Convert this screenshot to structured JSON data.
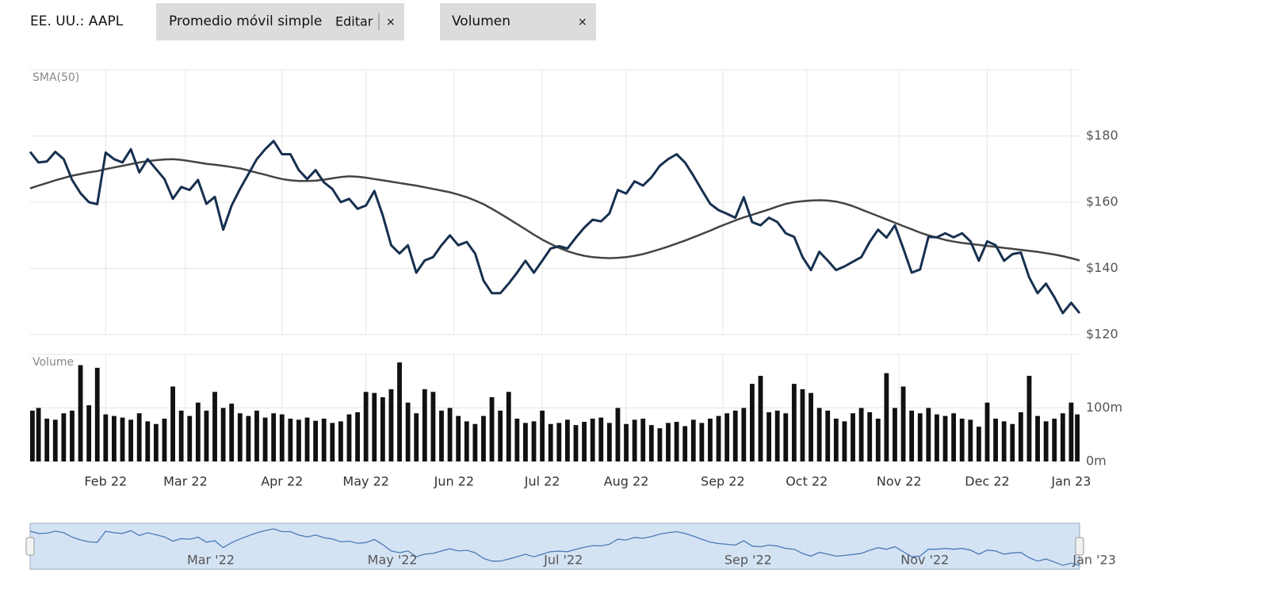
{
  "header": {
    "symbol": "EE. UU.: AAPL",
    "indicator": {
      "label": "Promedio móvil simple",
      "edit": "Editar",
      "close": "×"
    },
    "volume_tag": {
      "label": "Volumen",
      "close": "×"
    }
  },
  "chart_data": [
    {
      "type": "line",
      "title": "SMA(50)",
      "x": [
        0,
        2,
        4,
        6,
        8,
        10,
        12,
        14,
        16,
        18,
        20,
        22,
        24,
        26,
        28,
        30,
        32,
        34,
        36,
        38,
        40,
        42,
        44,
        46,
        48,
        50,
        52,
        54,
        56,
        58,
        60,
        62,
        64,
        66,
        68,
        70,
        72,
        74,
        76,
        78,
        80,
        82,
        84,
        86,
        88,
        90,
        92,
        94,
        96,
        98,
        100,
        102,
        104,
        106,
        108,
        110,
        112,
        114,
        116,
        118,
        120,
        122,
        124,
        126,
        128,
        130,
        132,
        134,
        136,
        138,
        140,
        142,
        144,
        146,
        148,
        150,
        152,
        154,
        156,
        158,
        160,
        162,
        164,
        166,
        168,
        170,
        172,
        174,
        176,
        178,
        180,
        182,
        184,
        186,
        188,
        190,
        192,
        194,
        196,
        198,
        200,
        202,
        204,
        206,
        208,
        210,
        212,
        214,
        216,
        218,
        220,
        222,
        224,
        226,
        228,
        230,
        232,
        234,
        236,
        238,
        240,
        242,
        244,
        246,
        248,
        250
      ],
      "xlim": [
        0,
        250
      ],
      "xticks": [
        {
          "value": 18,
          "label": "Feb 22"
        },
        {
          "value": 37,
          "label": "Mar 22"
        },
        {
          "value": 60,
          "label": "Apr 22"
        },
        {
          "value": 80,
          "label": "May 22"
        },
        {
          "value": 101,
          "label": "Jun 22"
        },
        {
          "value": 122,
          "label": "Jul 22"
        },
        {
          "value": 142,
          "label": "Aug 22"
        },
        {
          "value": 165,
          "label": "Sep 22"
        },
        {
          "value": 185,
          "label": "Oct 22"
        },
        {
          "value": 207,
          "label": "Nov 22"
        },
        {
          "value": 228,
          "label": "Dec 22"
        },
        {
          "value": 248,
          "label": "Jan 23"
        }
      ],
      "ylim": [
        120,
        200
      ],
      "yticks": [
        {
          "value": 120,
          "label": "$120"
        },
        {
          "value": 140,
          "label": "$140"
        },
        {
          "value": 160,
          "label": "$160"
        },
        {
          "value": 180,
          "label": "$180"
        }
      ],
      "grid": true,
      "series": [
        {
          "color": "#17304f",
          "values": [
            175.2,
            172,
            172.3,
            175.2,
            173,
            166.7,
            162.7,
            160,
            159.4,
            175,
            173,
            172,
            176,
            169,
            173,
            170,
            167,
            161,
            164.6,
            163.7,
            166.7,
            159.5,
            161.6,
            151.7,
            159,
            164,
            168.5,
            173,
            176,
            178.5,
            174.5,
            174.5,
            169.7,
            167,
            169.7,
            166,
            164,
            160,
            161,
            158,
            159,
            163.4,
            156,
            147,
            144.5,
            147,
            138.7,
            142.4,
            143.4,
            147,
            150,
            147,
            148,
            144.5,
            136.3,
            132.5,
            132.5,
            135.4,
            138.7,
            142.3,
            138.7,
            142.3,
            146,
            146.7,
            146,
            149.3,
            152.3,
            154.7,
            154.2,
            156.6,
            163.7,
            162.6,
            166.3,
            165,
            167.5,
            171,
            173,
            174.5,
            172,
            168,
            163.7,
            159.5,
            157.6,
            156.5,
            155.3,
            161.5,
            154,
            153,
            155.3,
            154,
            150.6,
            149.5,
            143.4,
            139.5,
            145,
            142.4,
            139.5,
            140.6,
            142,
            143.4,
            148,
            151.7,
            149.3,
            153,
            146,
            138.7,
            139.7,
            149.5,
            149.4,
            150.6,
            149.4,
            150.6,
            148.2,
            142.3,
            148.2,
            147,
            142.3,
            144.3,
            144.8,
            137.3,
            132.5,
            135.4,
            131.3,
            126.5,
            129.6,
            126.5
          ]
        },
        {
          "color": "#444444",
          "values": [
            164.2,
            165,
            165.8,
            166.6,
            167.3,
            168,
            168.5,
            169,
            169.4,
            170,
            170.5,
            171,
            171.5,
            172,
            172.4,
            172.7,
            172.9,
            173,
            172.8,
            172.4,
            172,
            171.6,
            171.3,
            171,
            170.6,
            170.2,
            169.6,
            168.9,
            168.3,
            167.6,
            167,
            166.6,
            166.4,
            166.4,
            166.5,
            166.8,
            167.2,
            167.6,
            167.8,
            167.7,
            167.4,
            167,
            166.6,
            166.2,
            165.8,
            165.4,
            165,
            164.5,
            164,
            163.5,
            163,
            162.3,
            161.5,
            160.5,
            159.4,
            158,
            156.5,
            155,
            153.4,
            151.8,
            150.2,
            148.7,
            147.4,
            146.2,
            145.2,
            144.4,
            143.8,
            143.4,
            143.2,
            143.1,
            143.2,
            143.4,
            143.8,
            144.3,
            145,
            145.8,
            146.6,
            147.5,
            148.4,
            149.4,
            150.4,
            151.4,
            152.5,
            153.5,
            154.5,
            155.4,
            156.2,
            157,
            157.8,
            158.7,
            159.5,
            160,
            160.3,
            160.5,
            160.6,
            160.5,
            160.2,
            159.6,
            158.8,
            157.8,
            156.8,
            155.8,
            154.8,
            153.8,
            152.8,
            151.8,
            150.8,
            150,
            149.3,
            148.6,
            148.1,
            147.7,
            147.4,
            147.1,
            146.8,
            146.5,
            146.2,
            145.9,
            145.6,
            145.3,
            145,
            144.6,
            144.2,
            143.7,
            143.1,
            142.4
          ]
        }
      ]
    },
    {
      "type": "bar",
      "title": "Volume",
      "color": "#111111",
      "ylim": [
        0,
        200
      ],
      "yticks": [
        {
          "value": 0,
          "label": "0m"
        },
        {
          "value": 100,
          "label": "100m"
        }
      ],
      "values": [
        95,
        100,
        80,
        78,
        90,
        95,
        180,
        105,
        175,
        88,
        85,
        82,
        78,
        90,
        75,
        70,
        80,
        140,
        95,
        85,
        110,
        95,
        130,
        100,
        108,
        90,
        85,
        95,
        82,
        90,
        88,
        80,
        78,
        82,
        76,
        80,
        72,
        75,
        88,
        92,
        130,
        128,
        120,
        135,
        185,
        110,
        90,
        135,
        130,
        95,
        100,
        85,
        75,
        70,
        85,
        120,
        95,
        130,
        80,
        72,
        75,
        95,
        70,
        72,
        78,
        68,
        74,
        80,
        82,
        72,
        100,
        70,
        78,
        80,
        68,
        62,
        72,
        74,
        66,
        78,
        72,
        80,
        85,
        90,
        95,
        100,
        145,
        160,
        92,
        95,
        90,
        145,
        135,
        128,
        100,
        95,
        80,
        75,
        90,
        100,
        92,
        80,
        165,
        100,
        140,
        95,
        90,
        100,
        88,
        85,
        90,
        80,
        78,
        65,
        110,
        80,
        75,
        70,
        92,
        160,
        85,
        75,
        80,
        90,
        110,
        88
      ]
    },
    {
      "type": "navigator",
      "xticks": [
        {
          "value": 37,
          "label": "Mar '22"
        },
        {
          "value": 80,
          "label": "May '22"
        },
        {
          "value": 122,
          "label": "Jul '22"
        },
        {
          "value": 165,
          "label": "Sep '22"
        },
        {
          "value": 207,
          "label": "Nov '22"
        },
        {
          "value": 248,
          "label": "Jan '23"
        }
      ]
    }
  ]
}
